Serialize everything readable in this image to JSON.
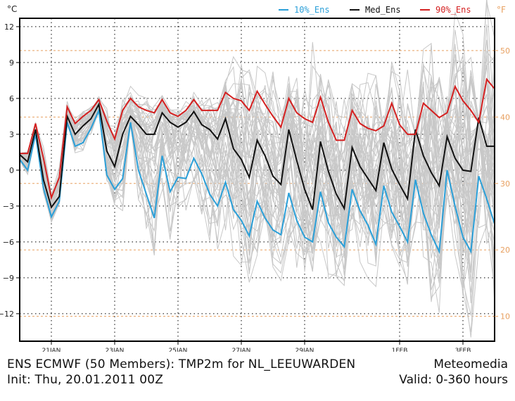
{
  "header": {
    "y_unit_left": "°C",
    "y_unit_right": "°F"
  },
  "legend": [
    {
      "label": "10%_Ens",
      "color": "#2a9fd8"
    },
    {
      "label": "Med_Ens",
      "color": "#111111"
    },
    {
      "label": "90%_Ens",
      "color": "#d42020"
    }
  ],
  "footer": {
    "title": "ENS ECMWF (50 Members): TMP2m for NL_LEEUWARDEN",
    "brand": "Meteomedia",
    "init": "Init: Thu, 20.01.2011 00Z",
    "valid": "Valid: 0-360 hours"
  },
  "colors": {
    "ensemble_member": "#c8c8c8",
    "grid": "#000000",
    "fahrenheit_grid": "#e8a060",
    "frame": "#000000"
  },
  "chart_data": {
    "type": "line",
    "title": "ENS ECMWF (50 Members): TMP2m for NL_LEEUWARDEN",
    "xlabel": "",
    "ylabel": "°C",
    "y2label": "°F",
    "x_unit": "hours since 20.01.2011 00Z",
    "xlim": [
      0,
      360
    ],
    "ylim": [
      -14.3,
      12.7
    ],
    "x_ticks": [
      {
        "hours": 24,
        "label": "21JAN"
      },
      {
        "hours": 72,
        "label": "23JAN"
      },
      {
        "hours": 120,
        "label": "25JAN"
      },
      {
        "hours": 168,
        "label": "27JAN"
      },
      {
        "hours": 216,
        "label": "29JAN"
      },
      {
        "hours": 288,
        "label": "1FEB"
      },
      {
        "hours": 336,
        "label": "3FEB"
      }
    ],
    "y_ticks": [
      12,
      9,
      6,
      3,
      0,
      -3,
      -6,
      -9,
      -12
    ],
    "y2_ticks": [
      50,
      40,
      30,
      20,
      10
    ],
    "grid": true,
    "legend_position": "top-right",
    "x": [
      0,
      6,
      12,
      18,
      24,
      30,
      36,
      42,
      48,
      54,
      60,
      66,
      72,
      78,
      84,
      90,
      96,
      102,
      108,
      114,
      120,
      126,
      132,
      138,
      144,
      150,
      156,
      162,
      168,
      174,
      180,
      186,
      192,
      198,
      204,
      210,
      216,
      222,
      228,
      234,
      240,
      246,
      252,
      258,
      264,
      270,
      276,
      282,
      288,
      294,
      300,
      306,
      312,
      318,
      324,
      330,
      336,
      342,
      348,
      354,
      360
    ],
    "series": [
      {
        "name": "10%_Ens",
        "color": "#2a9fd8",
        "values": [
          0.9,
          0.0,
          3.0,
          -1.5,
          -3.9,
          -2.6,
          4.0,
          2.0,
          2.3,
          3.5,
          5.0,
          -0.4,
          -1.6,
          -0.7,
          4.0,
          0.0,
          -2.0,
          -4.0,
          1.2,
          -1.8,
          -0.6,
          -0.7,
          1.0,
          -0.3,
          -2.0,
          -3.0,
          -1.0,
          -3.3,
          -4.2,
          -5.5,
          -2.6,
          -4.0,
          -5.0,
          -5.4,
          -1.9,
          -4.2,
          -5.6,
          -6.0,
          -1.8,
          -4.4,
          -5.6,
          -6.4,
          -1.6,
          -3.4,
          -4.6,
          -6.2,
          -1.3,
          -3.5,
          -4.7,
          -6.0,
          -0.8,
          -3.6,
          -5.4,
          -6.8,
          0.0,
          -3.0,
          -5.6,
          -6.8,
          -0.5,
          -2.4,
          -4.5
        ]
      },
      {
        "name": "Med_Ens",
        "color": "#111111",
        "values": [
          1.3,
          0.7,
          3.4,
          -0.8,
          -3.1,
          -2.2,
          4.5,
          3.0,
          3.7,
          4.3,
          5.5,
          1.6,
          0.3,
          3.0,
          4.5,
          3.8,
          3.0,
          3.0,
          4.8,
          4.0,
          3.6,
          4.0,
          4.9,
          3.8,
          3.4,
          2.6,
          4.3,
          1.8,
          0.9,
          -0.6,
          2.5,
          1.2,
          -0.5,
          -1.2,
          3.4,
          0.8,
          -1.6,
          -3.3,
          2.4,
          -0.1,
          -2.0,
          -3.2,
          1.9,
          0.3,
          -0.7,
          -1.7,
          2.3,
          0.1,
          -1.2,
          -2.4,
          3.4,
          1.2,
          -0.2,
          -1.3,
          2.8,
          1.0,
          0.0,
          -0.1,
          4.4,
          2.0,
          2.0
        ]
      },
      {
        "name": "90%_Ens",
        "color": "#d42020",
        "values": [
          1.4,
          1.4,
          3.9,
          1.0,
          -2.3,
          -0.6,
          5.3,
          3.9,
          4.5,
          5.0,
          5.9,
          4.1,
          2.6,
          5.0,
          6.0,
          5.3,
          5.0,
          4.8,
          5.9,
          4.8,
          4.5,
          5.0,
          5.9,
          5.0,
          5.0,
          5.0,
          6.5,
          6.0,
          5.8,
          5.0,
          6.6,
          5.5,
          4.5,
          3.6,
          6.0,
          4.8,
          4.3,
          4.0,
          6.1,
          4.0,
          2.5,
          2.5,
          5.0,
          3.9,
          3.5,
          3.3,
          3.7,
          5.6,
          3.8,
          3.0,
          3.0,
          5.6,
          5.0,
          4.4,
          4.8,
          7.0,
          5.8,
          5.0,
          4.0,
          7.6,
          6.8
        ]
      }
    ],
    "ensemble_members": 50
  }
}
